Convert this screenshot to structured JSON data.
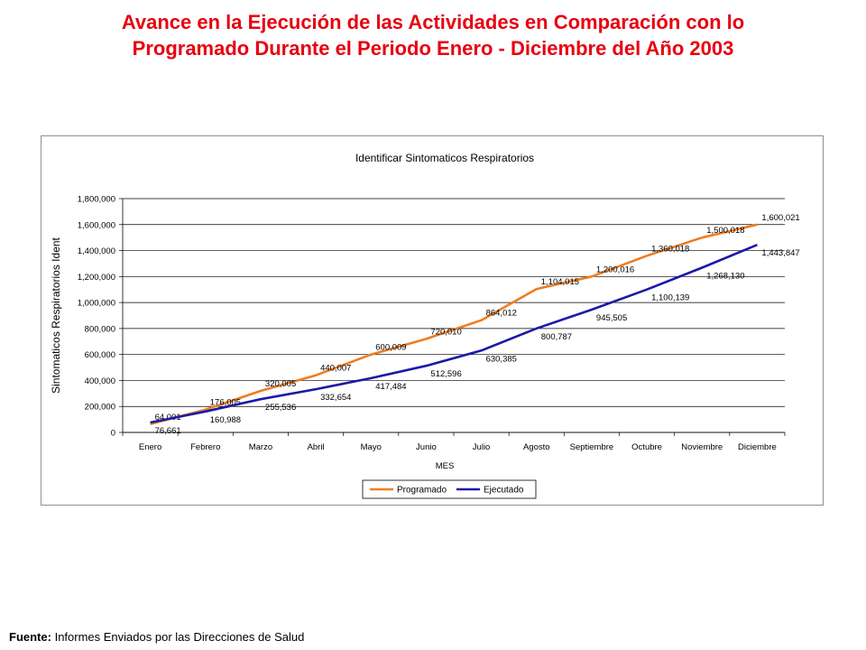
{
  "slide": {
    "title_line1": "Avance en la Ejecución de las Actividades en Comparación con lo",
    "title_line2": "Programado Durante el Periodo Enero - Diciembre del Año 2003",
    "title_color": "#e8000f"
  },
  "footer": {
    "label": "Fuente:",
    "text": "Informes Enviados por las Direcciones de Salud"
  },
  "chart_data": {
    "type": "line",
    "title": "Identificar Sintomaticos Respiratorios",
    "xlabel": "MES",
    "ylabel": "Sintomaticos Respiratorios Ident",
    "categories": [
      "Enero",
      "Febrero",
      "Marzo",
      "Abril",
      "Mayo",
      "Junio",
      "Julio",
      "Agosto",
      "Septiembre",
      "Octubre",
      "Noviembre",
      "Diciembre"
    ],
    "ylim": [
      0,
      1800000
    ],
    "yticks": [
      0,
      200000,
      400000,
      600000,
      800000,
      1000000,
      1200000,
      1400000,
      1600000,
      1800000
    ],
    "ytick_labels": [
      "0",
      "200,000",
      "400,000",
      "600,000",
      "800,000",
      "1,000,000",
      "1,200,000",
      "1,400,000",
      "1,600,000",
      "1,800,000"
    ],
    "grid": "horizontal",
    "legend_position": "bottom",
    "series": [
      {
        "name": "Programado",
        "color": "#ee7d22",
        "values": [
          64001,
          176005,
          320005,
          440007,
          600009,
          720010,
          864012,
          1104015,
          1200016,
          1360018,
          1500018,
          1600021
        ],
        "labels": [
          "64,001",
          "176,005",
          "320,005",
          "440,007",
          "600,009",
          "720,010",
          "864,012",
          "1,104,015",
          "1,200,016",
          "1,360,018",
          "1,500,018",
          "1,600,021"
        ]
      },
      {
        "name": "Ejecutado",
        "color": "#1a1aa8",
        "values": [
          76661,
          160988,
          255536,
          332654,
          417484,
          512596,
          630385,
          800787,
          945505,
          1100139,
          1268130,
          1443847
        ],
        "labels": [
          "76,661",
          "160,988",
          "255,536",
          "332,654",
          "417,484",
          "512,596",
          "630,385",
          "800,787",
          "945,505",
          "1,100,139",
          "1,268,130",
          "1,443,847"
        ]
      }
    ]
  }
}
